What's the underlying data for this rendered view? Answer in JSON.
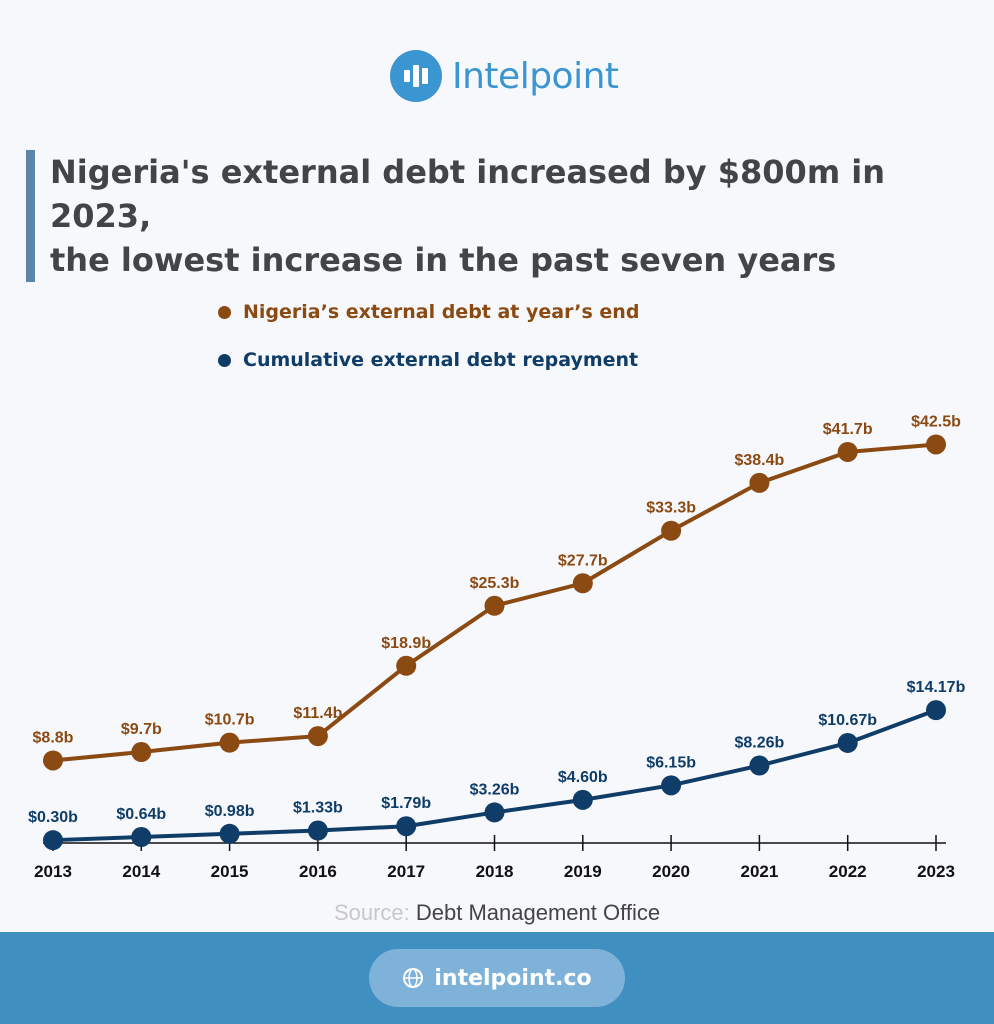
{
  "brand": {
    "name": "Intelpoint",
    "url": "intelpoint.co"
  },
  "title_line1": "Nigeria's external debt increased by $800m in 2023,",
  "title_line2": "the lowest increase in the past seven years",
  "source": {
    "label": "Source:",
    "value": "Debt Management Office"
  },
  "colors": {
    "debt": "#8a4a12",
    "repayment": "#0f3d68",
    "accent": "#3a95d0"
  },
  "chart_data": {
    "type": "line",
    "categories": [
      "2013",
      "2014",
      "2015",
      "2016",
      "2017",
      "2018",
      "2019",
      "2020",
      "2021",
      "2022",
      "2023"
    ],
    "series": [
      {
        "name": "Nigeria’s external debt at year’s end",
        "values": [
          8.8,
          9.7,
          10.7,
          11.4,
          18.9,
          25.3,
          27.7,
          33.3,
          38.4,
          41.7,
          42.5
        ],
        "labels": [
          "$8.8b",
          "$9.7b",
          "$10.7b",
          "$11.4b",
          "$18.9b",
          "$25.3b",
          "$27.7b",
          "$33.3b",
          "$38.4b",
          "$41.7b",
          "$42.5b"
        ]
      },
      {
        "name": "Cumulative external debt repayment",
        "values": [
          0.3,
          0.64,
          0.98,
          1.33,
          1.79,
          3.26,
          4.6,
          6.15,
          8.26,
          10.67,
          14.17
        ],
        "labels": [
          "$0.30b",
          "$0.64b",
          "$0.98b",
          "$1.33b",
          "$1.79b",
          "$3.26b",
          "$4.60b",
          "$6.15b",
          "$8.26b",
          "$10.67b",
          "$14.17b"
        ]
      }
    ],
    "ylim": [
      0,
      45
    ],
    "legend": "top-left",
    "grid": false
  }
}
